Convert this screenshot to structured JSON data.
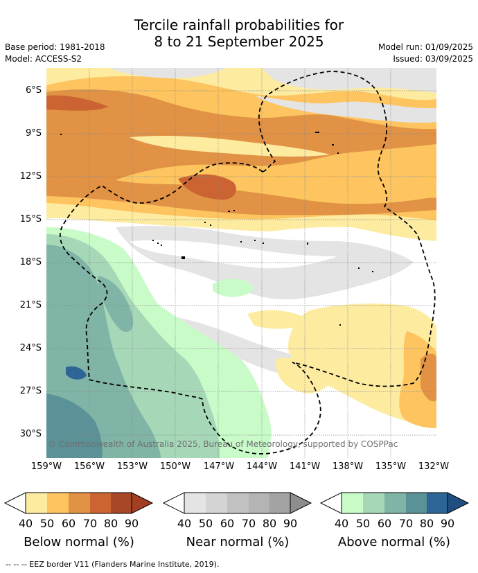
{
  "title": {
    "line1": "Tercile rainfall probabilities for",
    "line2": "8 to 21 September 2025"
  },
  "meta": {
    "base_period": "Base period: 1981-2018",
    "model": "Model: ACCESS-S2",
    "model_run": "Model run: 01/09/2025",
    "issued": "Issued: 03/09/2025"
  },
  "lat_labels": [
    "6°S",
    "9°S",
    "12°S",
    "15°S",
    "18°S",
    "21°S",
    "24°S",
    "27°S",
    "30°S"
  ],
  "lon_labels": [
    "159°W",
    "156°W",
    "153°W",
    "150°W",
    "147°W",
    "144°W",
    "141°W",
    "138°W",
    "135°W",
    "132°W"
  ],
  "copyright": "© Commonwealth of Australia 2025, Bureau of Meteorology, supported by COSPPac",
  "legend": {
    "ticks": [
      "40",
      "50",
      "60",
      "70",
      "80",
      "90"
    ],
    "below": {
      "label": "Below normal (%)",
      "colors": [
        "#fdeba0",
        "#fdc45f",
        "#e19244",
        "#cb6432",
        "#a84628",
        "#a23e22"
      ]
    },
    "near": {
      "label": "Near normal (%)",
      "colors": [
        "#e4e4e4",
        "#d4d4d4",
        "#c2c2c2",
        "#b4b4b4",
        "#a3a3a3",
        "#8d8d8d"
      ]
    },
    "above": {
      "label": "Above normal (%)",
      "colors": [
        "#c9fbc9",
        "#a6d8b8",
        "#7fb4a6",
        "#5a9297",
        "#2e6596",
        "#1f4f80"
      ]
    }
  },
  "eez_note": "--  --  -- EEZ border V11 (Flanders Marine Institute, 2019)."
}
